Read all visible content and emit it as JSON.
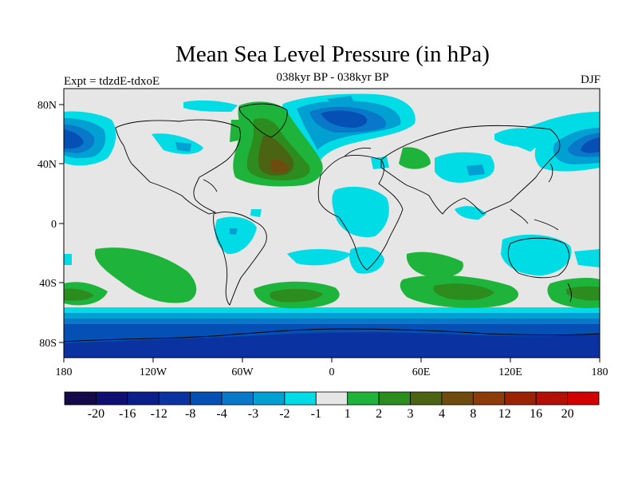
{
  "header": {
    "title": "Mean Sea Level Pressure (in hPa)",
    "subtitle": "038kyr BP - 038kyr BP",
    "experiment": "Expt = tdzdE-tdxoE",
    "season": "DJF"
  },
  "map": {
    "lat_ticks": [
      "80N",
      "40N",
      "0",
      "40S",
      "80S"
    ],
    "lon_ticks": [
      "180",
      "120W",
      "60W",
      "0",
      "60E",
      "120E",
      "180"
    ]
  },
  "colorbar": {
    "labels": [
      "-20",
      "-16",
      "-12",
      "-8",
      "-4",
      "-3",
      "-2",
      "-1",
      "1",
      "2",
      "3",
      "4",
      "8",
      "12",
      "16",
      "20"
    ],
    "colors": [
      "#140a4a",
      "#0f0f73",
      "#0a1e8c",
      "#0a32a0",
      "#0550b4",
      "#0a78c8",
      "#00a0d2",
      "#00dce6",
      "#e6e6e6",
      "#1eb43c",
      "#2d8c1e",
      "#4b6414",
      "#6e4b0f",
      "#8c3c0a",
      "#9b2305",
      "#b40f05",
      "#d20000"
    ]
  }
}
